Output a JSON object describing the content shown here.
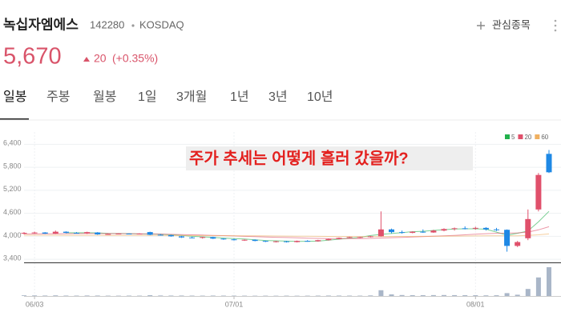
{
  "header": {
    "name": "녹십자엠에스",
    "code": "142280",
    "market": "KOSDAQ",
    "watch_label": "관심종목"
  },
  "price": {
    "value": "5,670",
    "change": "20",
    "change_pct": "(+0.35%)"
  },
  "tabs": [
    "일봉",
    "주봉",
    "월봉",
    "1일",
    "3개월",
    "1년",
    "3년",
    "10년"
  ],
  "selected_tab": 0,
  "chart_data": {
    "type": "candlestick",
    "annotation": "주가 추세는 어떻게 흘러 갔을까?",
    "categories": [
      null,
      "06/03",
      null,
      null,
      null,
      null,
      null,
      null,
      null,
      null,
      null,
      null,
      null,
      null,
      null,
      null,
      null,
      null,
      null,
      null,
      "07/01",
      null,
      null,
      null,
      null,
      null,
      null,
      null,
      null,
      null,
      null,
      null,
      null,
      null,
      null,
      null,
      null,
      null,
      null,
      null,
      null,
      null,
      null,
      "08/01",
      null,
      null,
      null,
      null,
      null,
      null,
      null
    ],
    "open": [
      4080,
      4090,
      4100,
      4070,
      4120,
      4090,
      4080,
      4100,
      4050,
      4060,
      4070,
      4060,
      4110,
      4040,
      4030,
      4000,
      3970,
      3960,
      3980,
      3940,
      3920,
      3900,
      3910,
      3880,
      3860,
      3870,
      3850,
      3880,
      3870,
      3900,
      3930,
      3960,
      3970,
      3980,
      4000,
      4180,
      4110,
      4090,
      4120,
      4100,
      4150,
      4190,
      4210,
      4200,
      4220,
      4180,
      4170,
      3750,
      3950,
      4700,
      6150
    ],
    "high": [
      4110,
      4120,
      4110,
      4150,
      4130,
      4110,
      4120,
      4110,
      4080,
      4080,
      4080,
      4080,
      4120,
      4060,
      4040,
      4010,
      3990,
      3990,
      3990,
      3950,
      3940,
      3920,
      3920,
      3890,
      3880,
      3880,
      3890,
      3900,
      3910,
      3940,
      3970,
      3990,
      3990,
      4010,
      4650,
      4200,
      4150,
      4130,
      4180,
      4170,
      4210,
      4230,
      4260,
      4250,
      4240,
      4220,
      4180,
      3880,
      4700,
      5650,
      6250
    ],
    "low": [
      4050,
      4070,
      4060,
      4060,
      4080,
      4070,
      4060,
      4040,
      4040,
      4050,
      4060,
      4050,
      4030,
      4020,
      3990,
      3960,
      3950,
      3940,
      3930,
      3910,
      3890,
      3880,
      3870,
      3850,
      3840,
      3840,
      3840,
      3860,
      3860,
      3890,
      3920,
      3950,
      3950,
      3970,
      3990,
      4080,
      4070,
      4080,
      4090,
      4090,
      4130,
      4150,
      4180,
      4170,
      4150,
      4140,
      3600,
      3720,
      3900,
      4650,
      5650
    ],
    "close": [
      4090,
      4100,
      4070,
      4120,
      4090,
      4080,
      4110,
      4050,
      4060,
      4070,
      4060,
      4070,
      4040,
      4030,
      4000,
      3970,
      3960,
      3980,
      3940,
      3920,
      3900,
      3910,
      3880,
      3860,
      3870,
      3850,
      3880,
      3870,
      3900,
      3930,
      3960,
      3980,
      3980,
      4000,
      4180,
      4110,
      4090,
      4120,
      4100,
      4150,
      4190,
      4210,
      4200,
      4220,
      4180,
      4170,
      3750,
      3850,
      4450,
      5600,
      5670
    ],
    "up_color": "#e0506b",
    "down_color": "#1e88e5",
    "ylim": [
      3320,
      6720
    ],
    "yticks": [
      {
        "value": 6400,
        "label": "6,400"
      },
      {
        "value": 5800,
        "label": "5,800"
      },
      {
        "value": 5200,
        "label": "5,200"
      },
      {
        "value": 4600,
        "label": "4,600"
      },
      {
        "value": 4000,
        "label": "4,000"
      },
      {
        "value": 3400,
        "label": "3,400"
      }
    ],
    "grid": true,
    "volumes": [
      210000,
      180000,
      150000,
      200000,
      140000,
      130000,
      160000,
      150000,
      120000,
      110000,
      130000,
      120000,
      250000,
      160000,
      140000,
      150000,
      130000,
      120000,
      140000,
      130000,
      120000,
      110000,
      100000,
      110000,
      100000,
      120000,
      100000,
      110000,
      130000,
      150000,
      140000,
      130000,
      120000,
      180000,
      1800000,
      500000,
      300000,
      250000,
      260000,
      280000,
      300000,
      270000,
      250000,
      240000,
      200000,
      230000,
      900000,
      400000,
      2200000,
      5800000,
      9000000
    ],
    "volume_lim": [
      0,
      10000000
    ],
    "volume_color": "#a9b6c8",
    "moving_averages": [
      {
        "name": "5",
        "color": "#22b14c",
        "values": [
          null,
          null,
          null,
          null,
          4094,
          4092,
          4094,
          4090,
          4078,
          4074,
          4070,
          4062,
          4060,
          4054,
          4040,
          4022,
          4000,
          3988,
          3970,
          3954,
          3940,
          3930,
          3910,
          3892,
          3884,
          3874,
          3866,
          3870,
          3874,
          3898,
          3924,
          3950,
          3970,
          4020,
          4050,
          4072,
          4098,
          4120,
          4132,
          4154,
          4174,
          4190,
          4196,
          4196,
          4186,
          4110,
          4030,
          4080,
          4140,
          4380,
          4650
        ]
      },
      {
        "name": "20",
        "color": "#e0506b",
        "values": [
          4060,
          4062,
          4064,
          4066,
          4068,
          4070,
          4072,
          4072,
          4071,
          4070,
          4068,
          4066,
          4062,
          4058,
          4052,
          4046,
          4040,
          4034,
          4026,
          4018,
          4010,
          4000,
          3992,
          3984,
          3976,
          3968,
          3960,
          3952,
          3946,
          3942,
          3940,
          3940,
          3942,
          3946,
          3956,
          3964,
          3972,
          3982,
          3992,
          4002,
          4014,
          4026,
          4040,
          4054,
          4068,
          4080,
          4084,
          4090,
          4110,
          4170,
          4250
        ]
      },
      {
        "name": "60",
        "color": "#f0b060",
        "values": [
          4030,
          4030,
          4029,
          4029,
          4028,
          4028,
          4027,
          4027,
          4026,
          4026,
          4025,
          4024,
          4023,
          4022,
          4021,
          4020,
          4019,
          4018,
          4017,
          4016,
          4015,
          4014,
          4012,
          4010,
          4008,
          4006,
          4004,
          4002,
          4000,
          3998,
          3996,
          3995,
          3994,
          3994,
          3995,
          3996,
          3997,
          3998,
          4000,
          4002,
          4004,
          4006,
          4008,
          4010,
          4012,
          4013,
          4012,
          4012,
          4022,
          4040,
          4062
        ]
      }
    ]
  }
}
